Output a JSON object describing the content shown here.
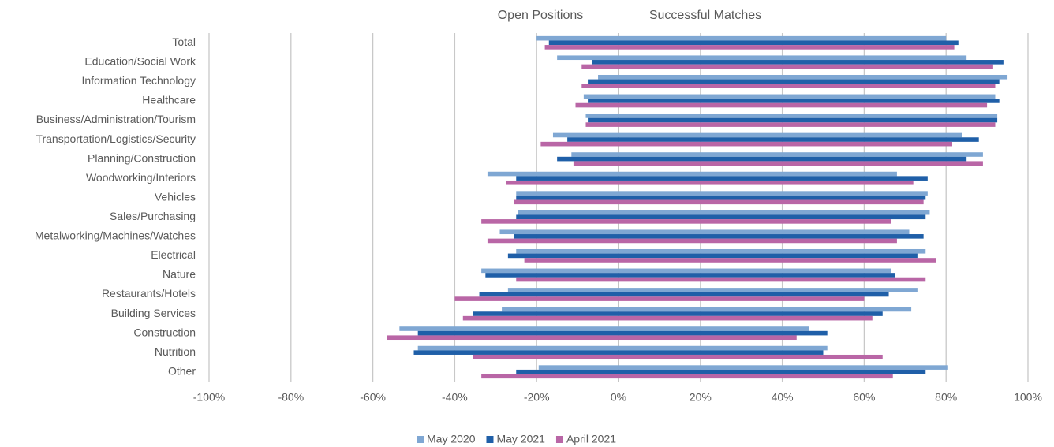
{
  "chart_data": {
    "type": "bar",
    "orientation": "horizontal",
    "annotations": [
      "Open Positions",
      "Successful Matches"
    ],
    "categories": [
      "Total",
      "Education/Social Work",
      "Information Technology",
      "Healthcare",
      "Business/Administration/Tourism",
      "Transportation/Logistics/Security",
      "Planning/Construction",
      "Woodworking/Interiors",
      "Vehicles",
      "Sales/Purchasing",
      "Metalworking/Machines/Watches",
      "Electrical",
      "Nature",
      "Restaurants/Hotels",
      "Building Services",
      "Construction",
      "Nutrition",
      "Other"
    ],
    "series": [
      {
        "name": "May 2020",
        "color": "#7fa7d3",
        "open_positions": [
          -20,
          -15,
          -5,
          -8.5,
          -8,
          -16,
          -11.5,
          -32,
          -25,
          -24.5,
          -29,
          -25,
          -33.5,
          -27,
          -28.5,
          -53.5,
          -49,
          -19.5
        ],
        "successful_matches": [
          80,
          85,
          95,
          92,
          92.5,
          84,
          89,
          68,
          75.5,
          76,
          71,
          75,
          66.5,
          73,
          71.5,
          46.5,
          51,
          80.5
        ]
      },
      {
        "name": "May 2021",
        "color": "#1f5fa8",
        "open_positions": [
          -17,
          -6.5,
          -7.5,
          -7.5,
          -7.5,
          -12.5,
          -15,
          -25,
          -25,
          -25,
          -25.5,
          -27,
          -32.5,
          -34,
          -35.5,
          -49,
          -50,
          -25
        ],
        "successful_matches": [
          83,
          94,
          93,
          93,
          92.5,
          88,
          85,
          75.5,
          75,
          75,
          74.5,
          73,
          67.5,
          66,
          64.5,
          51,
          50,
          75
        ]
      },
      {
        "name": "April 2021",
        "color": "#b966a6",
        "open_positions": [
          -18,
          -9,
          -9,
          -10.5,
          -8,
          -19,
          -11,
          -27.5,
          -25.5,
          -33.5,
          -32,
          -23,
          -25,
          -40,
          -38,
          -56.5,
          -35.5,
          -33.5
        ],
        "successful_matches": [
          82,
          91.5,
          92,
          90,
          92,
          81.5,
          89,
          72,
          74.5,
          66.5,
          68,
          77.5,
          75,
          60,
          62,
          43.5,
          64.5,
          67
        ]
      }
    ],
    "xlim": [
      -100,
      100
    ],
    "xticks": [
      {
        "value": -100,
        "label": "-100%"
      },
      {
        "value": -80,
        "label": "-80%"
      },
      {
        "value": -60,
        "label": "-60%"
      },
      {
        "value": -40,
        "label": "-40%"
      },
      {
        "value": -20,
        "label": "-20%"
      },
      {
        "value": 0,
        "label": "0%"
      },
      {
        "value": 20,
        "label": "20%"
      },
      {
        "value": 40,
        "label": "40%"
      },
      {
        "value": 60,
        "label": "60%"
      },
      {
        "value": 80,
        "label": "80%"
      },
      {
        "value": 100,
        "label": "100%"
      }
    ],
    "grid": true,
    "legend": "bottom"
  }
}
